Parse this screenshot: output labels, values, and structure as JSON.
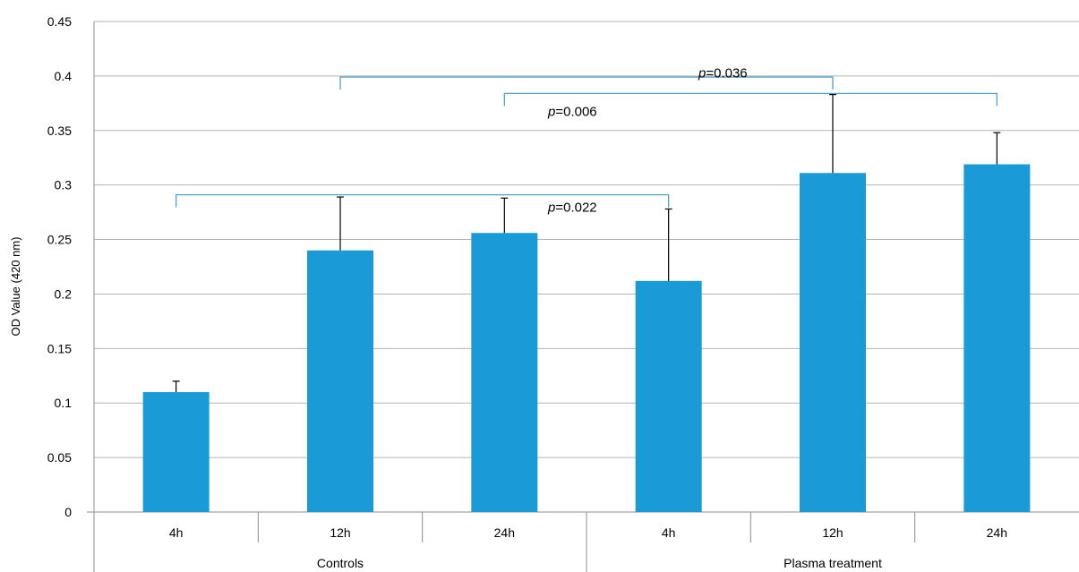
{
  "chart_data": {
    "type": "bar",
    "ylabel": "OD Value (420 nm)",
    "ylim": [
      0,
      0.45
    ],
    "yticks": [
      "0",
      "0.05",
      "0.1",
      "0.15",
      "0.2",
      "0.25",
      "0.3",
      "0.35",
      "0.4",
      "0.45"
    ],
    "grid": true,
    "bar_color": "#1a9ad6",
    "categories": [
      "4h",
      "12h",
      "24h",
      "4h",
      "12h",
      "24h"
    ],
    "groups": [
      {
        "label": "Controls",
        "categories": [
          "4h",
          "12h",
          "24h"
        ]
      },
      {
        "label": "Plasma treatment",
        "categories": [
          "4h",
          "12h",
          "24h"
        ]
      }
    ],
    "values": [
      0.11,
      0.24,
      0.256,
      0.212,
      0.311,
      0.319
    ],
    "error_upper": [
      0.12,
      0.289,
      0.288,
      0.278,
      0.383,
      0.348
    ],
    "annotations": [
      {
        "prefix": "p",
        "value": "=0.022",
        "from": 0,
        "to": 3
      },
      {
        "prefix": "p",
        "value": "=0.036",
        "from": 1,
        "to": 4
      },
      {
        "prefix": "p",
        "value": "=0.006",
        "from": 2,
        "to": 5
      }
    ]
  }
}
